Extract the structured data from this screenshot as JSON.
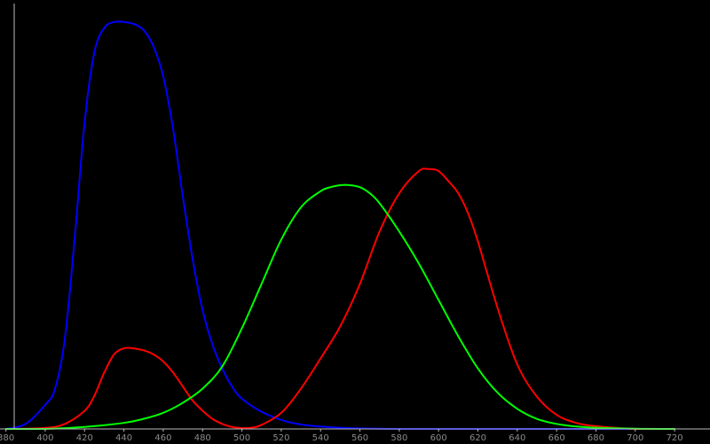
{
  "chart_data": {
    "type": "line",
    "title": "",
    "xlabel": "",
    "ylabel": "",
    "xlim": [
      377,
      738
    ],
    "ylim": [
      0,
      2.05
    ],
    "grid": false,
    "x_ticks": [
      380,
      400,
      420,
      440,
      460,
      480,
      500,
      520,
      540,
      560,
      580,
      600,
      620,
      640,
      660,
      680,
      700,
      720
    ],
    "x_tick_labels": [
      "380",
      "400",
      "420",
      "440",
      "460",
      "480",
      "500",
      "520",
      "540",
      "560",
      "580",
      "600",
      "620",
      "640",
      "660",
      "680",
      "700",
      "720"
    ],
    "colors": {
      "background": "#000000",
      "axis": "#bbbbbb",
      "tick_text": "#8a8a8a"
    },
    "series": [
      {
        "color": "#0000ff",
        "x": [
          380,
          390,
          400,
          405,
          410,
          415,
          420,
          425,
          430,
          435,
          440,
          445,
          450,
          455,
          460,
          465,
          470,
          475,
          480,
          485,
          490,
          495,
          500,
          510,
          520,
          530,
          540,
          550,
          560,
          580,
          600,
          650,
          700,
          720
        ],
        "y": [
          0.0,
          0.025,
          0.12,
          0.2,
          0.45,
          0.95,
          1.52,
          1.87,
          1.99,
          2.02,
          2.02,
          2.01,
          1.98,
          1.9,
          1.75,
          1.49,
          1.15,
          0.84,
          0.59,
          0.42,
          0.3,
          0.21,
          0.15,
          0.085,
          0.045,
          0.022,
          0.012,
          0.006,
          0.003,
          0.0,
          0.0,
          0.0,
          0.0,
          0.0
        ]
      },
      {
        "color": "#ff0000",
        "x": [
          380,
          400,
          410,
          420,
          425,
          430,
          435,
          440,
          445,
          450,
          455,
          460,
          465,
          470,
          475,
          480,
          485,
          490,
          495,
          500,
          505,
          510,
          520,
          530,
          540,
          550,
          560,
          570,
          580,
          590,
          595,
          600,
          605,
          610,
          615,
          620,
          630,
          640,
          650,
          660,
          670,
          680,
          700,
          720
        ],
        "y": [
          0.0,
          0.005,
          0.025,
          0.09,
          0.165,
          0.28,
          0.37,
          0.4,
          0.4,
          0.39,
          0.37,
          0.335,
          0.28,
          0.21,
          0.14,
          0.09,
          0.05,
          0.025,
          0.01,
          0.004,
          0.006,
          0.02,
          0.08,
          0.2,
          0.35,
          0.51,
          0.72,
          0.98,
          1.17,
          1.28,
          1.29,
          1.28,
          1.23,
          1.17,
          1.07,
          0.93,
          0.6,
          0.32,
          0.16,
          0.07,
          0.03,
          0.014,
          0.0,
          0.0
        ]
      },
      {
        "color": "#00ff00",
        "x": [
          380,
          400,
          420,
          440,
          450,
          460,
          470,
          480,
          490,
          500,
          510,
          520,
          530,
          540,
          545,
          550,
          555,
          560,
          565,
          570,
          580,
          590,
          600,
          610,
          620,
          630,
          640,
          650,
          660,
          670,
          680,
          700,
          720
        ],
        "y": [
          0.0,
          0.0,
          0.01,
          0.03,
          0.05,
          0.08,
          0.13,
          0.2,
          0.31,
          0.5,
          0.72,
          0.94,
          1.1,
          1.18,
          1.2,
          1.21,
          1.21,
          1.2,
          1.17,
          1.12,
          0.98,
          0.82,
          0.64,
          0.46,
          0.3,
          0.18,
          0.1,
          0.05,
          0.025,
          0.012,
          0.006,
          0.001,
          0.0
        ]
      }
    ]
  }
}
